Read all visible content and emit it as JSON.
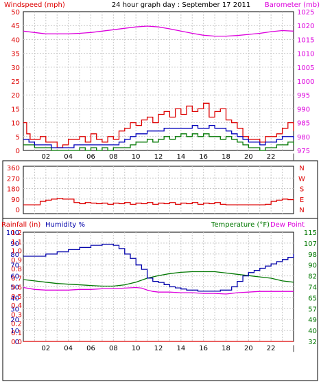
{
  "header": {
    "title": "24 hour graph day : September 17 2011"
  },
  "colors": {
    "wind": "#dd0000",
    "wind_avg": "#0000bb",
    "wind_gust": "#007700",
    "barometer": "#dd00dd",
    "rain": "#dd0000",
    "humidity": "#0000aa",
    "temperature": "#007700",
    "dewpoint": "#dd00dd",
    "grid": "#c8c8c8",
    "panel_border": "#000000"
  },
  "chart_data": [
    {
      "type": "line",
      "panel": "wind-barometer",
      "ylabel": "Windspeed (mph)",
      "y2label": "Barometer (mb)",
      "ylim": [
        0,
        50
      ],
      "y2lim": [
        975,
        1025
      ],
      "y_ticks": [
        "0",
        "5",
        "10",
        "15",
        "20",
        "25",
        "30",
        "35",
        "40",
        "45",
        "50"
      ],
      "y2_ticks": [
        "975",
        "980",
        "985",
        "990",
        "995",
        "1000",
        "1005",
        "1010",
        "1015",
        "1020",
        "1025"
      ],
      "x_ticks": [
        "02",
        "04",
        "06",
        "08",
        "10",
        "12",
        "14",
        "16",
        "18",
        "20",
        "22",
        "|"
      ],
      "grid": true,
      "series": [
        {
          "key": "wind_max",
          "color": "#dd0000",
          "x": [
            0,
            0.3,
            0.6,
            1,
            1.5,
            2,
            2.5,
            3,
            3.5,
            4,
            4.5,
            5,
            5.5,
            6,
            6.5,
            7,
            7.5,
            8,
            8.5,
            9,
            9.5,
            10,
            10.5,
            11,
            11.5,
            12,
            12.5,
            13,
            13.5,
            14,
            14.5,
            15,
            15.5,
            16,
            16.5,
            17,
            17.5,
            18,
            18.5,
            19,
            19.5,
            20,
            20.5,
            21,
            21.5,
            22,
            22.5,
            23,
            23.5,
            24
          ],
          "y": [
            10,
            6,
            4,
            4,
            5,
            3,
            3,
            1,
            2,
            4,
            4,
            5,
            3,
            6,
            4,
            3,
            5,
            4,
            7,
            8,
            10,
            9,
            11,
            12,
            10,
            13,
            14,
            12,
            15,
            13,
            16,
            14,
            15,
            17,
            12,
            14,
            15,
            11,
            10,
            8,
            5,
            4,
            4,
            3,
            5,
            5,
            6,
            8,
            10,
            7
          ]
        },
        {
          "key": "wind_avg",
          "color": "#0000bb",
          "x": [
            0,
            0.5,
            1,
            1.5,
            2,
            2.5,
            3,
            3.5,
            4,
            4.5,
            5,
            5.5,
            6,
            6.5,
            7,
            7.5,
            8,
            8.5,
            9,
            9.5,
            10,
            10.5,
            11,
            11.5,
            12,
            12.5,
            13,
            13.5,
            14,
            14.5,
            15,
            15.5,
            16,
            16.5,
            17,
            17.5,
            18,
            18.5,
            19,
            19.5,
            20,
            20.5,
            21,
            21.5,
            22,
            22.5,
            23,
            23.5,
            24
          ],
          "y": [
            4,
            3,
            2,
            2,
            2,
            1,
            1,
            1,
            1,
            2,
            2,
            2,
            2,
            2,
            2,
            2,
            2,
            3,
            4,
            5,
            6,
            6,
            7,
            7,
            7,
            8,
            8,
            8,
            8,
            8,
            9,
            8,
            8,
            9,
            8,
            8,
            7,
            6,
            5,
            4,
            3,
            3,
            2,
            3,
            3,
            4,
            5,
            5,
            4
          ]
        },
        {
          "key": "wind_gust",
          "color": "#007700",
          "x": [
            0,
            0.5,
            1,
            1.5,
            2,
            2.5,
            3,
            3.5,
            4,
            4.5,
            5,
            5.5,
            6,
            6.5,
            7,
            7.5,
            8,
            8.5,
            9,
            9.5,
            10,
            10.5,
            11,
            11.5,
            12,
            12.5,
            13,
            13.5,
            14,
            14.5,
            15,
            15.5,
            16,
            16.5,
            17,
            17.5,
            18,
            18.5,
            19,
            19.5,
            20,
            20.5,
            21,
            21.5,
            22,
            22.5,
            23,
            23.5,
            24
          ],
          "y": [
            2,
            2,
            1,
            1,
            1,
            0,
            0,
            0,
            0,
            0,
            1,
            0,
            1,
            0,
            1,
            0,
            1,
            1,
            1,
            2,
            3,
            3,
            4,
            3,
            4,
            5,
            4,
            5,
            6,
            5,
            6,
            5,
            6,
            5,
            5,
            4,
            5,
            4,
            3,
            2,
            1,
            1,
            0,
            1,
            1,
            2,
            2,
            3,
            2
          ]
        },
        {
          "key": "barometer",
          "color": "#dd00dd",
          "axis": "right",
          "x": [
            0,
            1,
            2,
            3,
            4,
            5,
            6,
            7,
            8,
            9,
            10,
            11,
            12,
            13,
            14,
            15,
            16,
            17,
            18,
            19,
            20,
            21,
            22,
            23,
            24
          ],
          "y": [
            1018,
            1017.5,
            1017,
            1017,
            1017,
            1017.2,
            1017.5,
            1018,
            1018.5,
            1019,
            1019.5,
            1019.8,
            1019.5,
            1018.8,
            1018,
            1017.2,
            1016.5,
            1016.2,
            1016.2,
            1016.4,
            1016.8,
            1017.2,
            1017.8,
            1018.2,
            1018
          ]
        }
      ]
    },
    {
      "type": "line",
      "panel": "wind-direction",
      "ylim": [
        0,
        360
      ],
      "y_ticks": [
        "0",
        "90",
        "180",
        "270",
        "360"
      ],
      "y2_ticks": [
        "N",
        "E",
        "S",
        "W",
        "N"
      ],
      "grid": true,
      "series": [
        {
          "key": "direction",
          "color": "#dd0000",
          "x": [
            0,
            0.5,
            1,
            1.5,
            2,
            2.5,
            3,
            3.5,
            4,
            4.5,
            5,
            5.5,
            6,
            6.5,
            7,
            7.5,
            8,
            8.5,
            9,
            9.5,
            10,
            10.5,
            11,
            11.5,
            12,
            12.5,
            13,
            13.5,
            14,
            14.5,
            15,
            15.5,
            16,
            16.5,
            17,
            17.5,
            18,
            18.5,
            19,
            19.5,
            20,
            20.5,
            21,
            21.5,
            22,
            22.5,
            23,
            23.5,
            24
          ],
          "y": [
            40,
            40,
            40,
            70,
            80,
            90,
            95,
            90,
            90,
            60,
            50,
            60,
            55,
            50,
            55,
            45,
            55,
            50,
            60,
            45,
            55,
            50,
            60,
            45,
            55,
            50,
            60,
            45,
            55,
            50,
            60,
            45,
            55,
            50,
            60,
            45,
            40,
            40,
            40,
            40,
            40,
            40,
            40,
            45,
            70,
            80,
            90,
            85,
            80
          ]
        }
      ]
    },
    {
      "type": "line",
      "panel": "rain-humidity-temperature",
      "labels": [
        "Rainfall (in)",
        "Humidity %",
        "Temperature (°F)",
        "Dew Point"
      ],
      "rain_ticks": [
        "0.0",
        "0.1",
        "0.2",
        "0.3",
        "0.4",
        "0.5",
        "0.6",
        "0.7",
        "0.8",
        "0.9",
        "1.0",
        "1.1",
        "1.2"
      ],
      "humidity_ticks": [
        "0",
        "10",
        "20",
        "30",
        "40",
        "50",
        "60",
        "70",
        "80",
        "90",
        "100"
      ],
      "temp_ticks": [
        "32",
        "40",
        "49",
        "57",
        "65",
        "74",
        "82",
        "90",
        "98",
        "107",
        "115"
      ],
      "humidity_lim": [
        0,
        100
      ],
      "temp_lim": [
        32,
        115
      ],
      "x_ticks": [
        "02",
        "04",
        "06",
        "08",
        "10",
        "12",
        "14",
        "16",
        "18",
        "20",
        "22",
        "|"
      ],
      "grid": true,
      "series": [
        {
          "key": "rain",
          "color": "#dd0000",
          "axis": "rain",
          "x": [
            0,
            24
          ],
          "y": [
            0,
            0
          ]
        },
        {
          "key": "humidity",
          "color": "#0000aa",
          "axis": "humidity",
          "x": [
            0,
            1,
            2,
            3,
            4,
            5,
            6,
            6.5,
            7,
            7.5,
            8,
            8.5,
            9,
            9.5,
            10,
            10.5,
            11,
            11.5,
            12,
            12.5,
            13,
            13.5,
            14,
            14.5,
            15,
            15.5,
            16,
            16.5,
            17,
            17.5,
            18,
            18.5,
            19,
            19.5,
            20,
            20.5,
            21,
            21.5,
            22,
            22.5,
            23,
            23.5,
            24
          ],
          "y": [
            78,
            78,
            80,
            82,
            84,
            86,
            88,
            88,
            89,
            89,
            88,
            85,
            80,
            76,
            70,
            66,
            58,
            55,
            54,
            52,
            50,
            49,
            48,
            47,
            47,
            46,
            46,
            46,
            46,
            47,
            47,
            50,
            55,
            60,
            63,
            65,
            67,
            69,
            71,
            73,
            75,
            77,
            80
          ]
        },
        {
          "key": "temperature",
          "color": "#007700",
          "axis": "temp",
          "x": [
            0,
            1,
            2,
            3,
            4,
            5,
            6,
            7,
            8,
            9,
            10,
            11,
            12,
            13,
            14,
            15,
            16,
            17,
            18,
            19,
            20,
            21,
            22,
            23,
            24
          ],
          "y": [
            79,
            78,
            77,
            76,
            75.5,
            75,
            74.5,
            74,
            74,
            75,
            77,
            80,
            82,
            83.5,
            84.5,
            85,
            85,
            85,
            84,
            83,
            82,
            81,
            80,
            78,
            77
          ]
        },
        {
          "key": "dewpoint",
          "color": "#dd00dd",
          "axis": "temp",
          "x": [
            0,
            1,
            2,
            3,
            4,
            5,
            6,
            7,
            8,
            9,
            10,
            10.5,
            11,
            11.5,
            12,
            13,
            14,
            15,
            16,
            17,
            18,
            18.5,
            19,
            20,
            21,
            22,
            23,
            24
          ],
          "y": [
            73,
            71.5,
            71,
            71,
            71,
            71.5,
            71.5,
            72,
            72,
            72.5,
            73,
            72.5,
            71,
            70,
            69.5,
            69.5,
            69,
            69,
            68.5,
            68.5,
            68,
            68.5,
            69,
            69.5,
            70,
            70,
            70,
            70
          ]
        }
      ]
    }
  ]
}
